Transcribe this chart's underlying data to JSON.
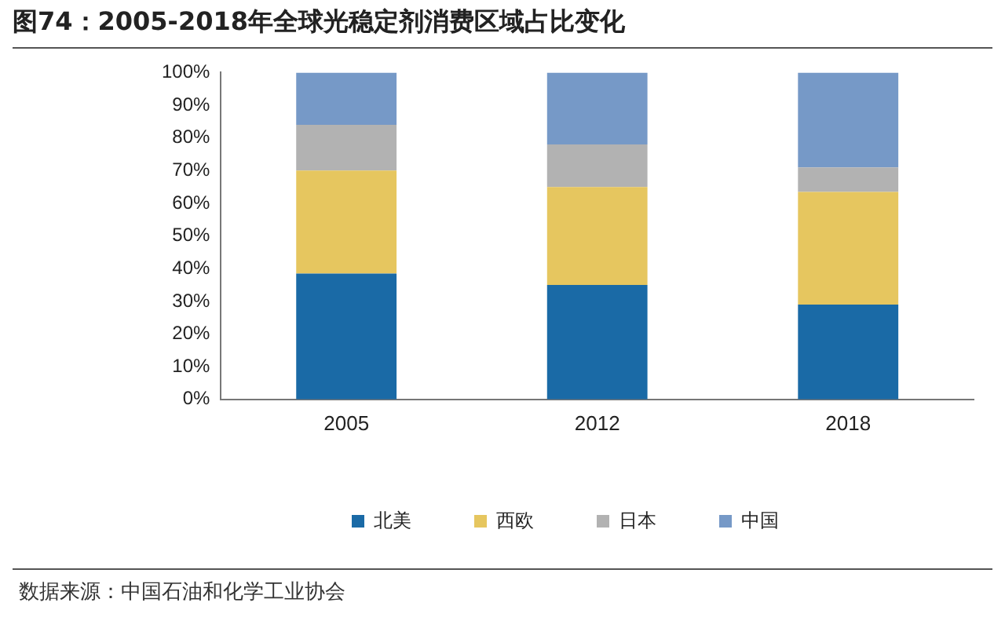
{
  "chart_data": {
    "type": "bar",
    "stacked": true,
    "title": "图74：2005-2018年全球光稳定剂消费区域占比变化",
    "categories": [
      "2005",
      "2012",
      "2018"
    ],
    "series": [
      {
        "name": "北美",
        "color": "#1a6aa6",
        "values": [
          38.5,
          35,
          29
        ]
      },
      {
        "name": "西欧",
        "color": "#e6c65f",
        "values": [
          31.5,
          30,
          34.5
        ]
      },
      {
        "name": "日本",
        "color": "#b2b2b2",
        "values": [
          14,
          13,
          7.5
        ]
      },
      {
        "name": "中国",
        "color": "#7699c7",
        "values": [
          16,
          22,
          29
        ]
      }
    ],
    "ylim": [
      0,
      100
    ],
    "yticks": [
      {
        "value": 0,
        "label": "0%"
      },
      {
        "value": 10,
        "label": "10%"
      },
      {
        "value": 20,
        "label": "20%"
      },
      {
        "value": 30,
        "label": "30%"
      },
      {
        "value": 40,
        "label": "40%"
      },
      {
        "value": 50,
        "label": "50%"
      },
      {
        "value": 60,
        "label": "60%"
      },
      {
        "value": 70,
        "label": "70%"
      },
      {
        "value": 80,
        "label": "80%"
      },
      {
        "value": 90,
        "label": "90%"
      },
      {
        "value": 100,
        "label": "100%"
      }
    ],
    "grid": false,
    "legend": "bottom",
    "annotations": [
      "数据来源：中国石油和化学工业协会"
    ]
  }
}
